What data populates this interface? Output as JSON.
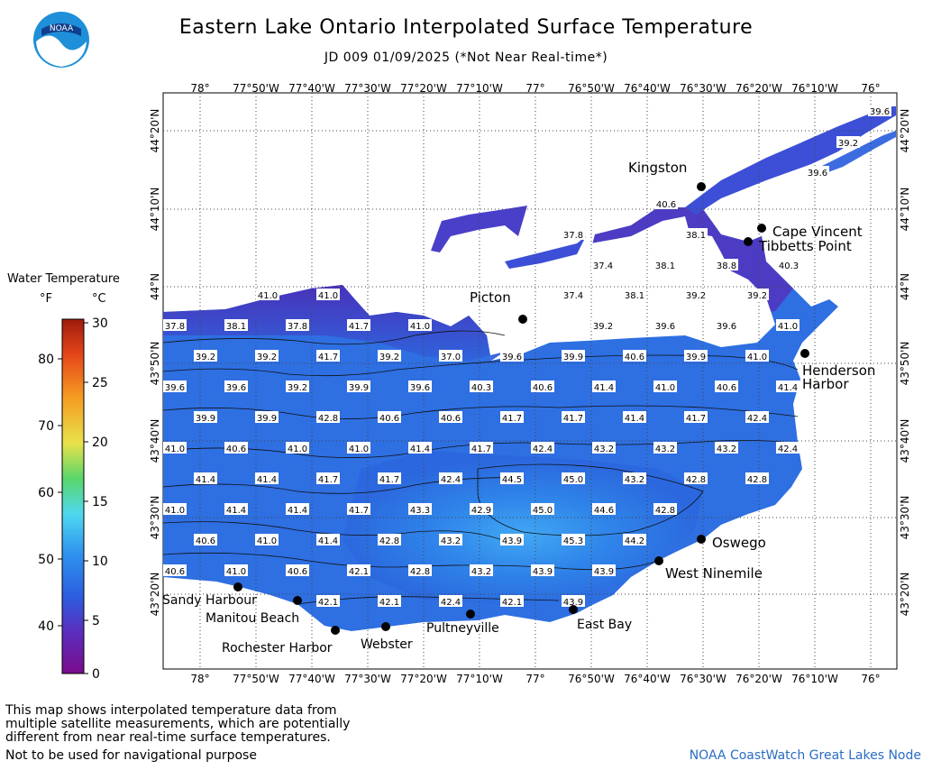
{
  "header": {
    "title": "Eastern Lake Ontario Interpolated Surface Temperature",
    "subtitle": "JD 009 01/09/2025 (*Not Near Real-time*)",
    "logo_text": "NOAA"
  },
  "legend": {
    "title": "Water Temperature",
    "unit_f": "°F",
    "unit_c": "°C",
    "f_ticks": [
      "80",
      "70",
      "60",
      "50",
      "40"
    ],
    "c_ticks": [
      "30",
      "25",
      "20",
      "15",
      "10",
      "5",
      "0"
    ],
    "colors": [
      "#7a0b8c",
      "#5a2fbf",
      "#2b5fe0",
      "#2f93ee",
      "#4fd8f0",
      "#59d66a",
      "#e8e24a",
      "#f59b22",
      "#e5461a",
      "#9e1a0c"
    ]
  },
  "map": {
    "lon_labels": [
      "78°",
      "77°50'W",
      "77°40'W",
      "77°30'W",
      "77°20'W",
      "77°10'W",
      "77°",
      "76°50'W",
      "76°40'W",
      "76°30'W",
      "76°20'W",
      "76°10'W",
      "76°"
    ],
    "lat_labels": [
      "44°20'N",
      "44°10'N",
      "44°N",
      "43°50'N",
      "43°40'N",
      "43°30'N",
      "43°20'N"
    ],
    "places": [
      {
        "name": "Kingston"
      },
      {
        "name": "Cape Vincent"
      },
      {
        "name": "Tibbetts Point"
      },
      {
        "name": "Picton"
      },
      {
        "name": "Henderson"
      },
      {
        "name": "Harbor"
      },
      {
        "name": "Oswego"
      },
      {
        "name": "West Ninemile"
      },
      {
        "name": "East Bay"
      },
      {
        "name": "Pultneyville"
      },
      {
        "name": "Webster"
      },
      {
        "name": "Rochester Harbor"
      },
      {
        "name": "Manitou Beach"
      },
      {
        "name": "Sandy Harbour"
      }
    ],
    "temperature_labels": [
      {
        "value": "39.6"
      },
      {
        "value": "39.2"
      },
      {
        "value": "39.6"
      },
      {
        "value": "40.6"
      },
      {
        "value": "37.8"
      },
      {
        "value": "38.1"
      },
      {
        "value": "37.4"
      },
      {
        "value": "38.1"
      },
      {
        "value": "38.8"
      },
      {
        "value": "40.3"
      },
      {
        "value": "41.0"
      },
      {
        "value": "41.0"
      },
      {
        "value": "37.4"
      },
      {
        "value": "38.1"
      },
      {
        "value": "39.2"
      },
      {
        "value": "39.2"
      },
      {
        "value": "37.8"
      },
      {
        "value": "38.1"
      },
      {
        "value": "37.8"
      },
      {
        "value": "41.7"
      },
      {
        "value": "41.0"
      },
      {
        "value": "39.2"
      },
      {
        "value": "39.6"
      },
      {
        "value": "39.6"
      },
      {
        "value": "41.0"
      },
      {
        "value": "39.2"
      },
      {
        "value": "39.2"
      },
      {
        "value": "41.7"
      },
      {
        "value": "39.2"
      },
      {
        "value": "37.0"
      },
      {
        "value": "39.6"
      },
      {
        "value": "39.9"
      },
      {
        "value": "40.6"
      },
      {
        "value": "39.9"
      },
      {
        "value": "41.0"
      },
      {
        "value": "39.6"
      },
      {
        "value": "39.6"
      },
      {
        "value": "39.2"
      },
      {
        "value": "39.9"
      },
      {
        "value": "39.6"
      },
      {
        "value": "40.3"
      },
      {
        "value": "40.6"
      },
      {
        "value": "41.4"
      },
      {
        "value": "41.0"
      },
      {
        "value": "40.6"
      },
      {
        "value": "41.4"
      },
      {
        "value": "39.9"
      },
      {
        "value": "39.9"
      },
      {
        "value": "42.8"
      },
      {
        "value": "40.6"
      },
      {
        "value": "40.6"
      },
      {
        "value": "41.7"
      },
      {
        "value": "41.7"
      },
      {
        "value": "41.4"
      },
      {
        "value": "41.7"
      },
      {
        "value": "42.4"
      },
      {
        "value": "41.0"
      },
      {
        "value": "40.6"
      },
      {
        "value": "41.0"
      },
      {
        "value": "41.0"
      },
      {
        "value": "41.4"
      },
      {
        "value": "41.7"
      },
      {
        "value": "42.4"
      },
      {
        "value": "43.2"
      },
      {
        "value": "43.2"
      },
      {
        "value": "43.2"
      },
      {
        "value": "42.4"
      },
      {
        "value": "41.4"
      },
      {
        "value": "41.4"
      },
      {
        "value": "41.7"
      },
      {
        "value": "41.7"
      },
      {
        "value": "42.4"
      },
      {
        "value": "44.5"
      },
      {
        "value": "45.0"
      },
      {
        "value": "43.2"
      },
      {
        "value": "42.8"
      },
      {
        "value": "42.8"
      },
      {
        "value": "41.0"
      },
      {
        "value": "41.4"
      },
      {
        "value": "41.4"
      },
      {
        "value": "41.7"
      },
      {
        "value": "43.3"
      },
      {
        "value": "42.9"
      },
      {
        "value": "45.0"
      },
      {
        "value": "44.6"
      },
      {
        "value": "42.8"
      },
      {
        "value": "40.6"
      },
      {
        "value": "41.0"
      },
      {
        "value": "41.4"
      },
      {
        "value": "42.8"
      },
      {
        "value": "43.2"
      },
      {
        "value": "43.9"
      },
      {
        "value": "45.3"
      },
      {
        "value": "44.2"
      },
      {
        "value": "40.6"
      },
      {
        "value": "41.0"
      },
      {
        "value": "40.6"
      },
      {
        "value": "42.1"
      },
      {
        "value": "42.8"
      },
      {
        "value": "43.2"
      },
      {
        "value": "43.9"
      },
      {
        "value": "43.9"
      },
      {
        "value": "42.1"
      },
      {
        "value": "42.1"
      },
      {
        "value": "42.4"
      },
      {
        "value": "42.1"
      },
      {
        "value": "43.9"
      }
    ]
  },
  "footer": {
    "note": "This map shows interpolated temperature data from\nmultiple satellite measurements, which are potentially\ndifferent from near real-time surface temperatures.",
    "nav_warning": "Not to be used for navigational purpose",
    "credit": "NOAA CoastWatch Great Lakes Node"
  }
}
